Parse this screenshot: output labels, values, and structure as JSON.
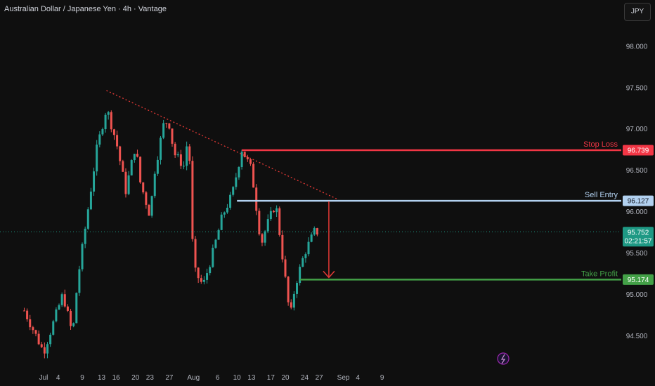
{
  "header": {
    "title": "Australian Dollar / Japanese Yen · 4h · Vantage",
    "currency_button": "JPY"
  },
  "colors": {
    "background": "#0f0f0f",
    "up": "#26a69a",
    "down": "#ef5350",
    "stop_loss": "#f23645",
    "sell_entry": "#b2d1f0",
    "take_profit": "#43a047",
    "trendline": "#e53935",
    "current_price": "#1e9984"
  },
  "price_scale": [
    "98.000",
    "97.500",
    "97.000",
    "96.500",
    "96.000",
    "95.500",
    "95.000",
    "94.500"
  ],
  "date_labels": [
    "Jul",
    "4",
    "9",
    "13",
    "16",
    "20",
    "23",
    "27",
    "Aug",
    "6",
    "10",
    "13",
    "17",
    "20",
    "24",
    "27",
    "Sep",
    "4",
    "9"
  ],
  "levels": {
    "stop_loss": {
      "label": "Stop Loss",
      "price": "96.739"
    },
    "sell_entry": {
      "label": "Sell Entry",
      "price": "96.127"
    },
    "take_profit": {
      "label": "Take Profit",
      "price": "95.174"
    },
    "current": {
      "price": "95.752",
      "countdown": "02:21:57"
    }
  },
  "chart_data": {
    "type": "candlestick",
    "title": "Australian Dollar / Japanese Yen · 4h · Vantage",
    "ylim": [
      94.1,
      98.3
    ],
    "y_ticks": [
      94.5,
      95.0,
      95.5,
      96.0,
      96.5,
      97.0,
      97.5,
      98.0
    ],
    "close_path": [
      [
        "Jun 27",
        94.8
      ],
      [
        "Jun 29",
        94.55
      ],
      [
        "Jul 1",
        94.3
      ],
      [
        "Jul 3",
        94.65
      ],
      [
        "Jul 5",
        95.0
      ],
      [
        "Jul 7",
        94.5
      ],
      [
        "Jul 8",
        95.15
      ],
      [
        "Jul 10",
        95.95
      ],
      [
        "Jul 12",
        96.75
      ],
      [
        "Jul 14",
        97.25
      ],
      [
        "Jul 16",
        96.85
      ],
      [
        "Jul 18",
        96.25
      ],
      [
        "Jul 20",
        96.8
      ],
      [
        "Jul 21",
        96.35
      ],
      [
        "Jul 23",
        95.95
      ],
      [
        "Jul 24",
        96.5
      ],
      [
        "Jul 26",
        97.1
      ],
      [
        "Jul 27",
        97.05
      ],
      [
        "Jul 28",
        96.7
      ],
      [
        "Jul 30",
        96.55
      ],
      [
        "Jul 31",
        96.95
      ],
      [
        "Aug 1",
        95.3
      ],
      [
        "Aug 3",
        95.1
      ],
      [
        "Aug 5",
        95.5
      ],
      [
        "Aug 7",
        95.95
      ],
      [
        "Aug 9",
        96.2
      ],
      [
        "Aug 11",
        96.75
      ],
      [
        "Aug 13",
        96.5
      ],
      [
        "Aug 15",
        95.6
      ],
      [
        "Aug 16",
        95.8
      ],
      [
        "Aug 18",
        96.1
      ],
      [
        "Aug 19",
        95.65
      ],
      [
        "Aug 21",
        94.7
      ],
      [
        "Aug 22",
        95.1
      ],
      [
        "Aug 24",
        95.5
      ],
      [
        "Aug 26",
        95.75
      ],
      [
        "Aug 27",
        95.75
      ]
    ],
    "annotations": [
      {
        "type": "trendline",
        "style": "dotted",
        "from": [
          "Jul 14",
          97.46
        ],
        "to": [
          "Aug 31",
          96.14
        ]
      },
      {
        "type": "level",
        "name": "Stop Loss",
        "value": 96.739,
        "from": "Aug 11"
      },
      {
        "type": "level",
        "name": "Sell Entry",
        "value": 96.127,
        "from": "Aug 10"
      },
      {
        "type": "level",
        "name": "Take Profit",
        "value": 95.174,
        "from": "Aug 23"
      },
      {
        "type": "arrow",
        "from": [
          "Aug 29",
          96.12
        ],
        "to": [
          "Aug 29",
          95.2
        ]
      }
    ]
  }
}
